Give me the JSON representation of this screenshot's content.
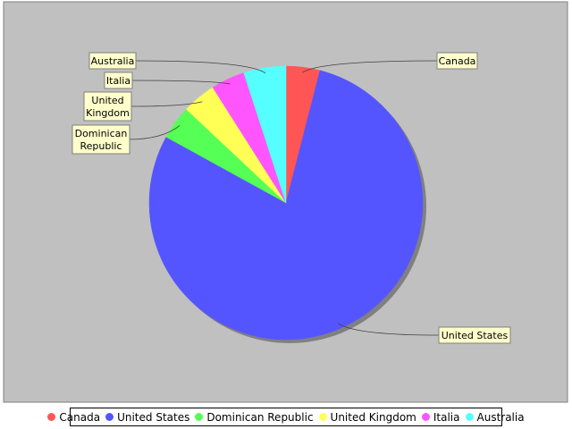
{
  "chart_data": {
    "type": "pie",
    "slices": [
      {
        "label": "Canada",
        "value": 4,
        "color": "#ff5555"
      },
      {
        "label": "United States",
        "value": 79,
        "color": "#5555ff"
      },
      {
        "label": "Dominican Republic",
        "value": 4,
        "color": "#55ff55"
      },
      {
        "label": "United Kingdom",
        "value": 4,
        "color": "#ffff55"
      },
      {
        "label": "Italia",
        "value": 4,
        "color": "#ff55ff"
      },
      {
        "label": "Australia",
        "value": 5,
        "color": "#55ffff"
      }
    ],
    "plot_background": "#c0c0c0",
    "legend_position": "bottom",
    "label_background": "#ffffcc"
  }
}
